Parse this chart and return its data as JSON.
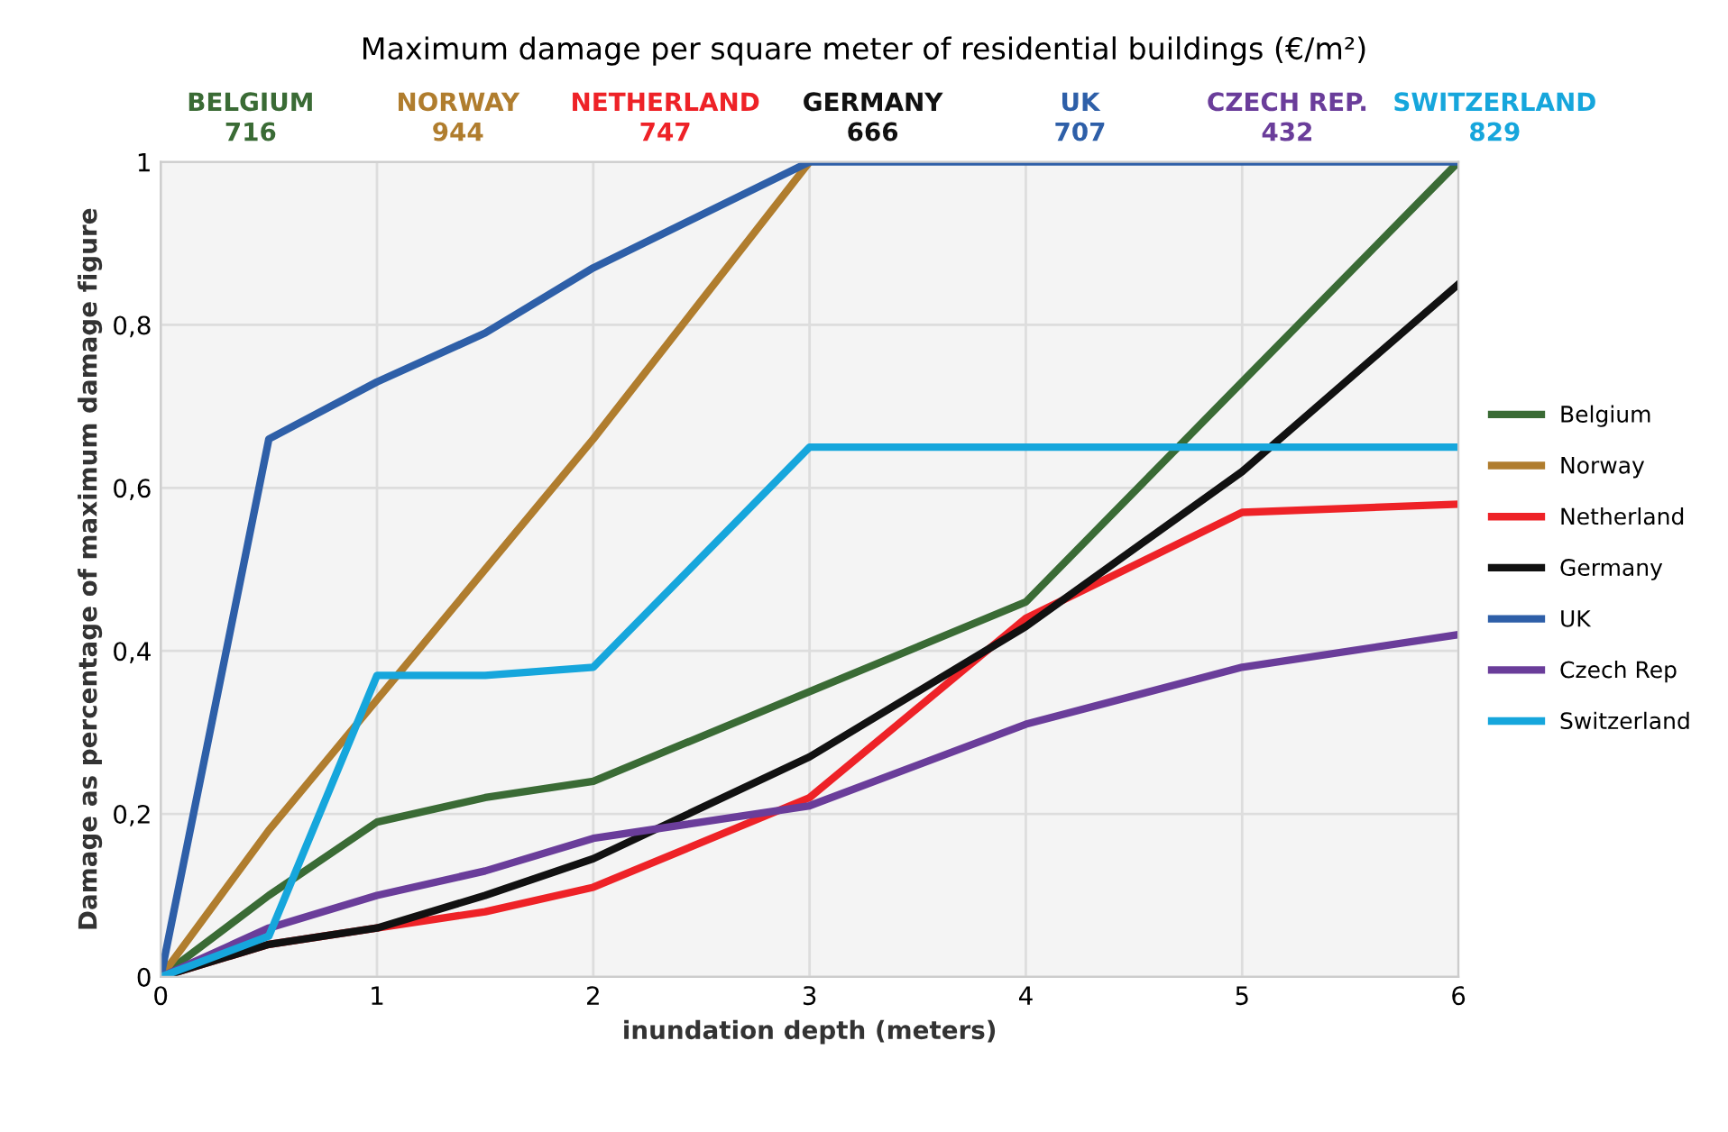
{
  "chart_data": {
    "type": "line",
    "title": "Maximum damage per square meter of residential buildings (€/m²)",
    "xlabel": "inundation depth (meters)",
    "ylabel": "Damage as percentage of maximum damage figure",
    "x": [
      0,
      0.5,
      1,
      1.5,
      2,
      3,
      4,
      5,
      6
    ],
    "series": [
      {
        "name": "Belgium",
        "color": "#3a6b35",
        "values": [
          0,
          0.1,
          0.19,
          0.22,
          0.24,
          0.35,
          0.46,
          0.73,
          1
        ]
      },
      {
        "name": "Norway",
        "color": "#b07d2e",
        "values": [
          0,
          0.18,
          0.34,
          0.5,
          0.66,
          1,
          null,
          null,
          null
        ]
      },
      {
        "name": "Netherland",
        "color": "#ee2227",
        "values": [
          0,
          0.04,
          0.06,
          0.08,
          0.11,
          0.22,
          0.44,
          0.57,
          0.58
        ]
      },
      {
        "name": "Germany",
        "color": "#111111",
        "values": [
          0,
          0.04,
          0.06,
          0.1,
          0.145,
          0.27,
          0.43,
          0.62,
          0.85
        ]
      },
      {
        "name": "UK",
        "color": "#2e5fa8",
        "values": [
          0,
          0.66,
          0.73,
          0.79,
          0.87,
          1,
          1,
          1,
          1
        ]
      },
      {
        "name": "Czech Rep",
        "color": "#6a3d9a",
        "values": [
          0,
          0.06,
          0.1,
          0.13,
          0.17,
          0.21,
          0.31,
          0.38,
          0.42
        ]
      },
      {
        "name": "Switzerland",
        "color": "#16a6dc",
        "values": [
          0,
          0.05,
          0.37,
          0.37,
          0.38,
          0.65,
          0.65,
          0.65,
          0.65
        ]
      }
    ],
    "annotations": [
      "BELGIUM\n716",
      "NORWAY\n944",
      "NETHERLAND\n747",
      "GERMANY\n666",
      "UK\n707",
      "CZECH REP.\n432",
      "SWITZERLAND\n829"
    ],
    "xlim": [
      0,
      6
    ],
    "xticks": [
      0,
      1,
      2,
      3,
      4,
      5,
      6
    ],
    "ylim": [
      0,
      1
    ],
    "yticks": [
      0,
      {
        "value": 0.2,
        "label": "0,2"
      },
      {
        "value": 0.4,
        "label": "0,4"
      },
      {
        "value": 0.6,
        "label": "0,6"
      },
      {
        "value": 0.8,
        "label": "0,8"
      },
      1
    ],
    "grid": true,
    "legend": "right",
    "marker": "none",
    "line_style": "solid"
  }
}
